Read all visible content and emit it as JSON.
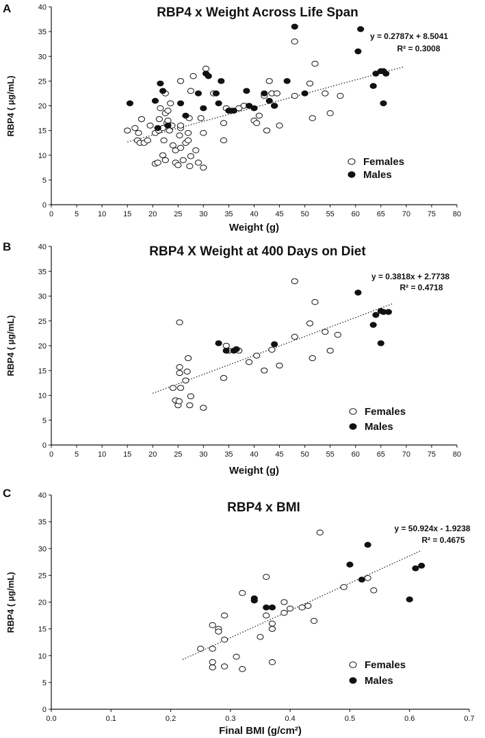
{
  "chart_data": [
    {
      "type": "scatter",
      "panel_label": "A",
      "title": "RBP4 x Weight Across Life Span",
      "xlabel": "Weight (g)",
      "ylabel": "RBP4 ( µg/mL)",
      "xlim": [
        0,
        80
      ],
      "ylim": [
        0,
        40
      ],
      "x_ticks": [
        0,
        5,
        10,
        15,
        20,
        25,
        30,
        35,
        40,
        45,
        50,
        55,
        60,
        65,
        70,
        75,
        80
      ],
      "y_ticks": [
        0,
        5,
        10,
        15,
        20,
        25,
        30,
        35,
        40
      ],
      "trendline": {
        "slope": 0.2787,
        "intercept": 8.5041,
        "x_range": [
          15,
          69.5
        ],
        "style": "dotted"
      },
      "equation": "y = 0.2787x + 8.5041",
      "r_squared": "R² = 0.3008",
      "legend": {
        "position": "bottom-right",
        "entries": [
          "Females",
          "Males"
        ]
      },
      "series": [
        {
          "name": "Females",
          "marker": "open-circle",
          "points": [
            [
              15,
              15
            ],
            [
              16.5,
              15.5
            ],
            [
              17,
              13
            ],
            [
              17.2,
              14.5
            ],
            [
              17.5,
              12.5
            ],
            [
              17.8,
              17.3
            ],
            [
              18.3,
              12.5
            ],
            [
              19,
              13
            ],
            [
              19.5,
              16
            ],
            [
              20.5,
              14.5
            ],
            [
              20.5,
              8.3
            ],
            [
              21,
              8.5
            ],
            [
              21.2,
              15
            ],
            [
              21.3,
              17.3
            ],
            [
              21.5,
              19.5
            ],
            [
              22,
              15.5
            ],
            [
              22,
              10
            ],
            [
              22.2,
              13
            ],
            [
              22.5,
              18.5
            ],
            [
              22.5,
              22.5
            ],
            [
              22.5,
              9
            ],
            [
              22.8,
              16.5
            ],
            [
              23,
              17
            ],
            [
              23,
              19
            ],
            [
              23.3,
              15
            ],
            [
              23.5,
              20.5
            ],
            [
              23.8,
              16
            ],
            [
              24,
              12
            ],
            [
              24.5,
              11
            ],
            [
              24.5,
              8.5
            ],
            [
              25,
              8
            ],
            [
              25.3,
              14
            ],
            [
              25.5,
              15.5
            ],
            [
              25.5,
              16
            ],
            [
              25.5,
              11.5
            ],
            [
              25.5,
              25
            ],
            [
              26,
              9
            ],
            [
              26.5,
              12.5
            ],
            [
              27,
              14.5
            ],
            [
              27,
              13
            ],
            [
              27.2,
              17.5
            ],
            [
              27.3,
              7.8
            ],
            [
              27.5,
              9.8
            ],
            [
              27.5,
              23
            ],
            [
              28,
              26
            ],
            [
              28.5,
              11
            ],
            [
              29,
              8.5
            ],
            [
              29.5,
              17.5
            ],
            [
              30,
              7.5
            ],
            [
              30,
              14.5
            ],
            [
              30.5,
              27.5
            ],
            [
              32,
              22.5
            ],
            [
              34,
              13
            ],
            [
              34,
              16.5
            ],
            [
              34.5,
              19.5
            ],
            [
              35.5,
              19
            ],
            [
              37,
              19.5
            ],
            [
              38,
              20
            ],
            [
              40,
              17
            ],
            [
              40.5,
              16.5
            ],
            [
              41,
              18
            ],
            [
              42,
              22
            ],
            [
              42.5,
              15
            ],
            [
              43,
              25
            ],
            [
              43.5,
              22.5
            ],
            [
              44,
              20
            ],
            [
              44.5,
              22.5
            ],
            [
              45,
              16
            ],
            [
              48,
              22
            ],
            [
              48,
              33
            ],
            [
              51,
              24.5
            ],
            [
              51.5,
              17.5
            ],
            [
              52,
              28.5
            ],
            [
              54,
              22.5
            ],
            [
              55,
              18.5
            ],
            [
              57,
              22
            ]
          ]
        },
        {
          "name": "Males",
          "marker": "filled-circle",
          "points": [
            [
              15.5,
              20.5
            ],
            [
              20.5,
              21
            ],
            [
              21,
              15.5
            ],
            [
              21.5,
              24.5
            ],
            [
              22,
              23
            ],
            [
              23,
              16
            ],
            [
              25.5,
              20.5
            ],
            [
              26.5,
              18
            ],
            [
              29,
              22.5
            ],
            [
              30,
              19.5
            ],
            [
              30.5,
              26.5
            ],
            [
              31,
              26
            ],
            [
              32.5,
              22.5
            ],
            [
              33,
              20.5
            ],
            [
              33.5,
              25
            ],
            [
              35,
              19
            ],
            [
              36,
              19
            ],
            [
              38.5,
              23
            ],
            [
              39,
              20
            ],
            [
              40,
              19.5
            ],
            [
              42,
              22.5
            ],
            [
              43,
              21
            ],
            [
              44,
              20
            ],
            [
              46.5,
              25
            ],
            [
              48,
              36
            ],
            [
              50,
              22.5
            ],
            [
              60.5,
              31
            ],
            [
              61,
              35.5
            ],
            [
              63.5,
              24
            ],
            [
              64,
              26.5
            ],
            [
              65,
              27
            ],
            [
              65.5,
              27
            ],
            [
              65.5,
              20.5
            ],
            [
              66,
              26.5
            ]
          ]
        }
      ]
    },
    {
      "type": "scatter",
      "panel_label": "B",
      "title": "RBP4 X Weight at 400 Days on Diet",
      "xlabel": "Weight (g)",
      "ylabel": "RBP4 ( µg/mL)",
      "xlim": [
        0,
        80
      ],
      "ylim": [
        0,
        40
      ],
      "x_ticks": [
        0,
        5,
        10,
        15,
        20,
        25,
        30,
        35,
        40,
        45,
        50,
        55,
        60,
        65,
        70,
        75,
        80
      ],
      "y_ticks": [
        0,
        5,
        10,
        15,
        20,
        25,
        30,
        35,
        40
      ],
      "trendline": {
        "slope": 0.3818,
        "intercept": 2.7738,
        "x_range": [
          20,
          67.5
        ],
        "style": "dotted"
      },
      "equation": "y = 0.3818x + 2.7738",
      "r_squared": "R² = 0.4718",
      "legend": {
        "position": "bottom-right",
        "entries": [
          "Females",
          "Males"
        ]
      },
      "series": [
        {
          "name": "Females",
          "marker": "open-circle",
          "points": [
            [
              24,
              11.5
            ],
            [
              24.5,
              9
            ],
            [
              25,
              8
            ],
            [
              25.2,
              8.8
            ],
            [
              25.3,
              15.7
            ],
            [
              25.3,
              14.5
            ],
            [
              25.3,
              24.7
            ],
            [
              25.5,
              11.5
            ],
            [
              26.5,
              13
            ],
            [
              26.8,
              14.8
            ],
            [
              27,
              17.5
            ],
            [
              27.3,
              8
            ],
            [
              27.5,
              9.8
            ],
            [
              30,
              7.5
            ],
            [
              34,
              13.5
            ],
            [
              34.5,
              20
            ],
            [
              35,
              19
            ],
            [
              37,
              19
            ],
            [
              39,
              16.7
            ],
            [
              40.5,
              18
            ],
            [
              42,
              15
            ],
            [
              43.5,
              19.2
            ],
            [
              45,
              16
            ],
            [
              48,
              21.8
            ],
            [
              48,
              33
            ],
            [
              51,
              24.5
            ],
            [
              51.5,
              17.5
            ],
            [
              52,
              28.8
            ],
            [
              54,
              22.8
            ],
            [
              55,
              19
            ],
            [
              56.5,
              22.2
            ]
          ]
        },
        {
          "name": "Males",
          "marker": "filled-circle",
          "points": [
            [
              33,
              20.5
            ],
            [
              34.5,
              19
            ],
            [
              36,
              19
            ],
            [
              36.5,
              19.3
            ],
            [
              44,
              20.3
            ],
            [
              60.5,
              30.7
            ],
            [
              63.5,
              24.2
            ],
            [
              64,
              26.2
            ],
            [
              65,
              20.5
            ],
            [
              65,
              27
            ],
            [
              65.5,
              26.8
            ],
            [
              66.5,
              26.8
            ]
          ]
        }
      ]
    },
    {
      "type": "scatter",
      "panel_label": "C",
      "title": "RBP4 x BMI",
      "xlabel": "Final BMI (g/cm²)",
      "ylabel": "RBP4 ( µg/mL)",
      "xlim": [
        0,
        0.7
      ],
      "ylim": [
        0,
        40
      ],
      "x_ticks": [
        0.0,
        0.1,
        0.2,
        0.3,
        0.4,
        0.5,
        0.6,
        0.7
      ],
      "y_ticks": [
        0,
        5,
        10,
        15,
        20,
        25,
        30,
        35,
        40
      ],
      "trendline": {
        "slope": 50.924,
        "intercept": -1.9238,
        "x_range": [
          0.22,
          0.62
        ],
        "style": "dotted"
      },
      "equation": "y = 50.924x - 1.9238",
      "r_squared": "R² = 0.4675",
      "legend": {
        "position": "bottom-right",
        "entries": [
          "Females",
          "Males"
        ]
      },
      "series": [
        {
          "name": "Females",
          "marker": "open-circle",
          "points": [
            [
              0.25,
              11.3
            ],
            [
              0.27,
              15.7
            ],
            [
              0.27,
              11.3
            ],
            [
              0.27,
              8.8
            ],
            [
              0.27,
              7.8
            ],
            [
              0.28,
              15
            ],
            [
              0.28,
              14.5
            ],
            [
              0.29,
              17.5
            ],
            [
              0.29,
              13
            ],
            [
              0.29,
              8
            ],
            [
              0.31,
              9.8
            ],
            [
              0.32,
              21.7
            ],
            [
              0.32,
              7.5
            ],
            [
              0.35,
              13.5
            ],
            [
              0.36,
              24.7
            ],
            [
              0.36,
              17.5
            ],
            [
              0.37,
              16
            ],
            [
              0.37,
              15
            ],
            [
              0.37,
              8.8
            ],
            [
              0.39,
              20
            ],
            [
              0.39,
              18
            ],
            [
              0.4,
              18.8
            ],
            [
              0.42,
              19
            ],
            [
              0.43,
              19.3
            ],
            [
              0.44,
              16.5
            ],
            [
              0.45,
              33
            ],
            [
              0.49,
              22.8
            ],
            [
              0.53,
              24.5
            ],
            [
              0.54,
              22.2
            ]
          ]
        },
        {
          "name": "Males",
          "marker": "filled-circle",
          "points": [
            [
              0.34,
              20.7
            ],
            [
              0.34,
              20.3
            ],
            [
              0.36,
              19
            ],
            [
              0.37,
              19
            ],
            [
              0.5,
              27
            ],
            [
              0.52,
              24.2
            ],
            [
              0.53,
              30.7
            ],
            [
              0.6,
              20.5
            ],
            [
              0.61,
              26.3
            ],
            [
              0.62,
              26.8
            ]
          ]
        }
      ]
    }
  ]
}
